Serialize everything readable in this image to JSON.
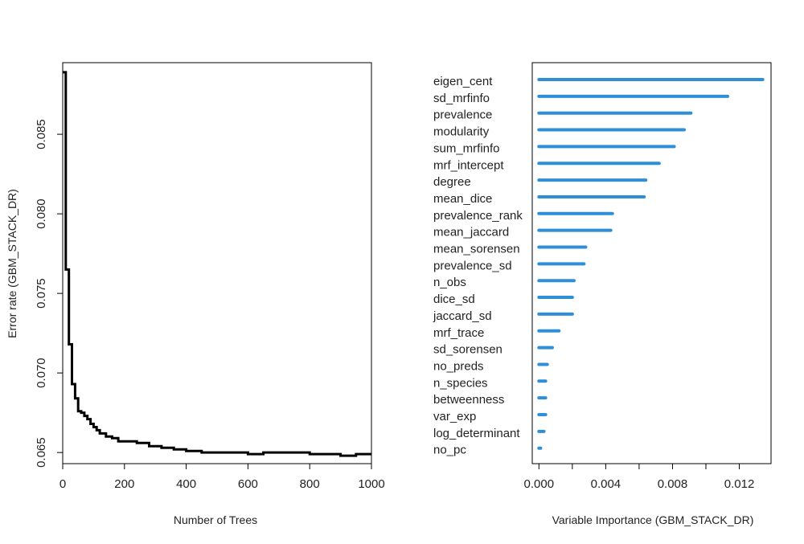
{
  "chart_data": [
    {
      "type": "line",
      "xlabel": "Number of Trees",
      "ylabel": "Error rate (GBM_STACK_DR)",
      "xlim": [
        0,
        1000
      ],
      "ylim": [
        0.0643,
        0.0895
      ],
      "xticks": [
        0,
        200,
        400,
        600,
        800,
        1000
      ],
      "xtick_labels": [
        "0",
        "200",
        "400",
        "600",
        "800",
        "1000"
      ],
      "yticks": [
        0.065,
        0.07,
        0.075,
        0.08,
        0.085
      ],
      "ytick_labels": [
        "0.065",
        "0.070",
        "0.075",
        "0.080",
        "0.085"
      ],
      "line_color": "#000000",
      "series": [
        {
          "x": [
            0,
            10,
            10,
            20,
            20,
            30,
            30,
            40,
            40,
            50,
            50,
            60,
            60,
            70,
            70,
            80,
            80,
            90,
            90,
            100,
            100,
            110,
            110,
            120,
            120,
            140,
            140,
            160,
            160,
            180,
            180,
            200,
            200,
            240,
            240,
            280,
            280,
            320,
            320,
            360,
            360,
            400,
            400,
            450,
            450,
            500,
            500,
            550,
            550,
            600,
            600,
            650,
            650,
            700,
            700,
            750,
            750,
            800,
            800,
            850,
            850,
            900,
            900,
            950,
            950,
            1000
          ],
          "y": [
            0.0889,
            0.0889,
            0.0765,
            0.0765,
            0.0718,
            0.0718,
            0.0693,
            0.0693,
            0.0684,
            0.0684,
            0.0676,
            0.0676,
            0.0675,
            0.0675,
            0.0673,
            0.0673,
            0.0671,
            0.0671,
            0.0668,
            0.0668,
            0.0666,
            0.0666,
            0.0664,
            0.0664,
            0.0662,
            0.0662,
            0.066,
            0.066,
            0.0659,
            0.0659,
            0.0657,
            0.0657,
            0.0657,
            0.0657,
            0.0656,
            0.0656,
            0.0654,
            0.0654,
            0.0653,
            0.0653,
            0.0652,
            0.0652,
            0.0651,
            0.0651,
            0.065,
            0.065,
            0.065,
            0.065,
            0.065,
            0.065,
            0.0649,
            0.0649,
            0.065,
            0.065,
            0.065,
            0.065,
            0.065,
            0.065,
            0.0649,
            0.0649,
            0.0649,
            0.0649,
            0.0648,
            0.0648,
            0.0649,
            0.0649
          ]
        }
      ]
    },
    {
      "type": "bar",
      "orientation": "horizontal",
      "xlabel": "Variable Importance (GBM_STACK_DR)",
      "xlim": [
        -0.0004,
        0.0139
      ],
      "xticks": [
        0.0,
        0.002,
        0.004,
        0.006,
        0.008,
        0.01,
        0.012
      ],
      "xtick_labels": [
        "0.000",
        "",
        "0.004",
        "",
        "0.008",
        "",
        "0.012"
      ],
      "bar_color": "#2e8fd8",
      "categories": [
        "eigen_cent",
        "sd_mrfinfo",
        "prevalence",
        "modularity",
        "sum_mrfinfo",
        "mrf_intercept",
        "degree",
        "mean_dice",
        "prevalence_rank",
        "mean_jaccard",
        "mean_sorensen",
        "prevalence_sd",
        "n_obs",
        "dice_sd",
        "jaccard_sd",
        "mrf_trace",
        "sd_sorensen",
        "no_preds",
        "n_species",
        "betweenness",
        "var_exp",
        "log_determinant",
        "no_pc"
      ],
      "values": [
        0.0134,
        0.0113,
        0.0091,
        0.0087,
        0.0081,
        0.0072,
        0.0064,
        0.0063,
        0.0044,
        0.0043,
        0.0028,
        0.0027,
        0.0021,
        0.002,
        0.002,
        0.0012,
        0.0008,
        0.0005,
        0.0004,
        0.0004,
        0.0004,
        0.0003,
        0.0001
      ]
    }
  ]
}
